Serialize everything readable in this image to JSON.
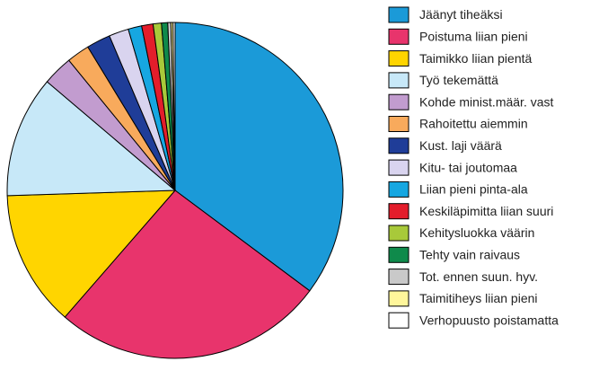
{
  "chart_data": {
    "type": "pie",
    "categories": [
      "Jäänyt tiheäksi",
      "Poistuma liian pieni",
      "Taimikko liian pientä",
      "Työ tekemättä",
      "Kohde minist.määr. vast",
      "Rahoitettu aiemmin",
      "Kust. laji väärä",
      "Kitu- tai joutomaa",
      "Liian pieni pinta-ala",
      "Keskiläpimitta liian suuri",
      "Kehitysluokka väärin",
      "Tehty vain raivaus",
      "Tot. ennen suun. hyv.",
      "Taimitiheys liian pieni",
      "Verhopuusto poistamatta"
    ],
    "values": [
      35.2,
      26.2,
      13.1,
      11.7,
      2.9,
      2.2,
      2.3,
      1.9,
      1.3,
      1.1,
      0.8,
      0.6,
      0.3,
      0.2,
      0.2
    ],
    "colors": [
      "#1b9ad8",
      "#e8346c",
      "#ffd500",
      "#c7e8f8",
      "#c29ccf",
      "#f8aa5c",
      "#1f3d98",
      "#d9d4ef",
      "#16a7e1",
      "#e31d2b",
      "#a8c93a",
      "#0f8a4b",
      "#c9c9c9",
      "#fff69b",
      "#ffffff"
    ],
    "legend": "right"
  }
}
